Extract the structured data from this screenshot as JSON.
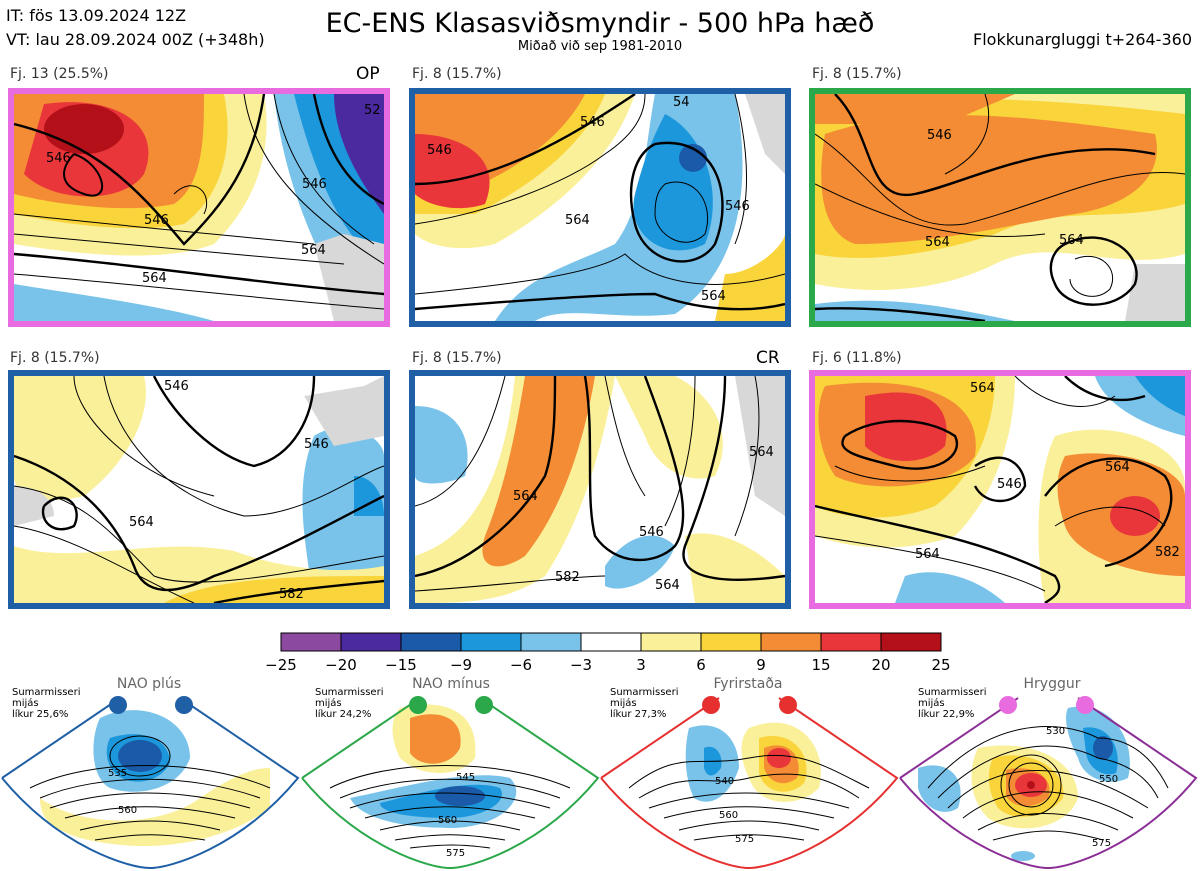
{
  "header": {
    "it": "IT: fös 13.09.2024 12Z",
    "vt": "VT: lau 28.09.2024 00Z  (+348h)",
    "title": "EC-ENS Klasasviðsmyndir - 500 hPa hæð",
    "subtitle": "Miðað við sep 1981-2010",
    "window": "Flokkunargluggi t+264-360"
  },
  "panels": [
    {
      "label": "Fj. 13 (25.5%)",
      "mark": "OP",
      "border": "#e86be0"
    },
    {
      "label": "Fj. 8 (15.7%)",
      "mark": "",
      "border": "#1f5fa6"
    },
    {
      "label": "Fj. 8 (15.7%)",
      "mark": "",
      "border": "#2aa84a"
    },
    {
      "label": "Fj. 8 (15.7%)",
      "mark": "",
      "border": "#1f5fa6"
    },
    {
      "label": "Fj. 8 (15.7%)",
      "mark": "CR",
      "border": "#1f5fa6"
    },
    {
      "label": "Fj. 6 (11.8%)",
      "mark": "",
      "border": "#e86be0"
    }
  ],
  "contour_labels": {
    "p0": [
      "546",
      "546",
      "564",
      "564",
      "546",
      "52"
    ],
    "p1": [
      "546",
      "546",
      "564",
      "564",
      "546",
      "54"
    ],
    "p2": [
      "546",
      "564",
      "564"
    ],
    "p3": [
      "546",
      "546",
      "564",
      "582"
    ],
    "p4": [
      "564",
      "546",
      "582",
      "564",
      "564"
    ],
    "p5": [
      "564",
      "564",
      "564",
      "582",
      "546"
    ]
  },
  "colorbar": {
    "ticks": [
      "−25",
      "−20",
      "−15",
      "−9",
      "−6",
      "−3",
      "3",
      "6",
      "9",
      "15",
      "20",
      "25"
    ],
    "colors": [
      "#8b4a9f",
      "#4b2aa0",
      "#1a5aa8",
      "#1c97dc",
      "#79c3ea",
      "#ffffff",
      "#fbf09a",
      "#f9d43b",
      "#f38c35",
      "#e9363a",
      "#b41019"
    ]
  },
  "regimes": [
    {
      "name": "NAO plús",
      "season": "Sumarmisseri",
      "mean": "mijás",
      "prob": "líkur 25,6%",
      "dot": "#1f5fa6",
      "border": "#1f5fa6",
      "labels": [
        "535",
        "560"
      ]
    },
    {
      "name": "NAO mínus",
      "season": "Sumarmisseri",
      "mean": "mijás",
      "prob": "líkur 24,2%",
      "dot": "#2aa84a",
      "border": "#2aa84a",
      "labels": [
        "545",
        "560",
        "575"
      ]
    },
    {
      "name": "Fyrirstaða",
      "season": "Sumarmisseri",
      "mean": "mijás",
      "prob": "líkur 27,3%",
      "dot": "#e63030",
      "border": "#e63030",
      "labels": [
        "540",
        "560",
        "575"
      ]
    },
    {
      "name": "Hryggur",
      "season": "Sumarmisseri",
      "mean": "mijás",
      "prob": "líkur 22,9%",
      "dot": "#e86be0",
      "border": "#8b2f96",
      "labels": [
        "530",
        "550",
        "575"
      ]
    }
  ]
}
